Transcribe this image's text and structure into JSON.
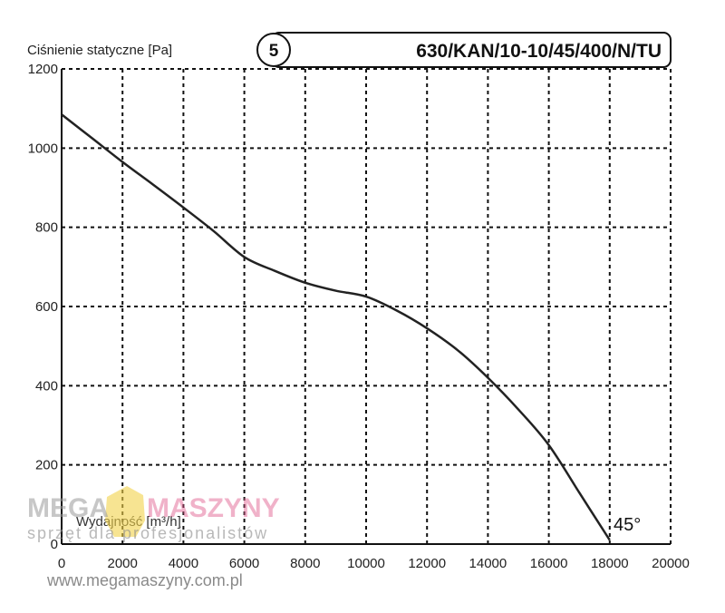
{
  "chart_data": {
    "type": "line",
    "title": "630/KAN/10-10/45/400/N/TU",
    "badge": "5",
    "ylabel": "Ciśnienie statyczne [Pa]",
    "xlabel": "Wydajność [m³/h]",
    "xlim": [
      0,
      20000
    ],
    "ylim": [
      0,
      1200
    ],
    "x_ticks": [
      "0",
      "2000",
      "4000",
      "6000",
      "8000",
      "10000",
      "12000",
      "14000",
      "16000",
      "18000",
      "20000"
    ],
    "y_ticks": [
      "0",
      "200",
      "400",
      "600",
      "800",
      "1000",
      "1200"
    ],
    "grid": true,
    "annotation": "45°",
    "series": [
      {
        "x": [
          0,
          1000,
          2000,
          3000,
          4000,
          5000,
          6000,
          7000,
          8000,
          9000,
          10000,
          11000,
          12000,
          13000,
          14000,
          15000,
          16000,
          17000,
          18000
        ],
        "y": [
          1085,
          1025,
          965,
          908,
          850,
          790,
          725,
          690,
          660,
          640,
          625,
          590,
          545,
          490,
          420,
          340,
          250,
          130,
          10
        ]
      }
    ]
  },
  "watermark": {
    "brand_left": "MEGA",
    "brand_right": "MASZYNY",
    "tagline": "sprzęt dla profesjonalistów",
    "url": "www.megamaszyny.com.pl"
  }
}
